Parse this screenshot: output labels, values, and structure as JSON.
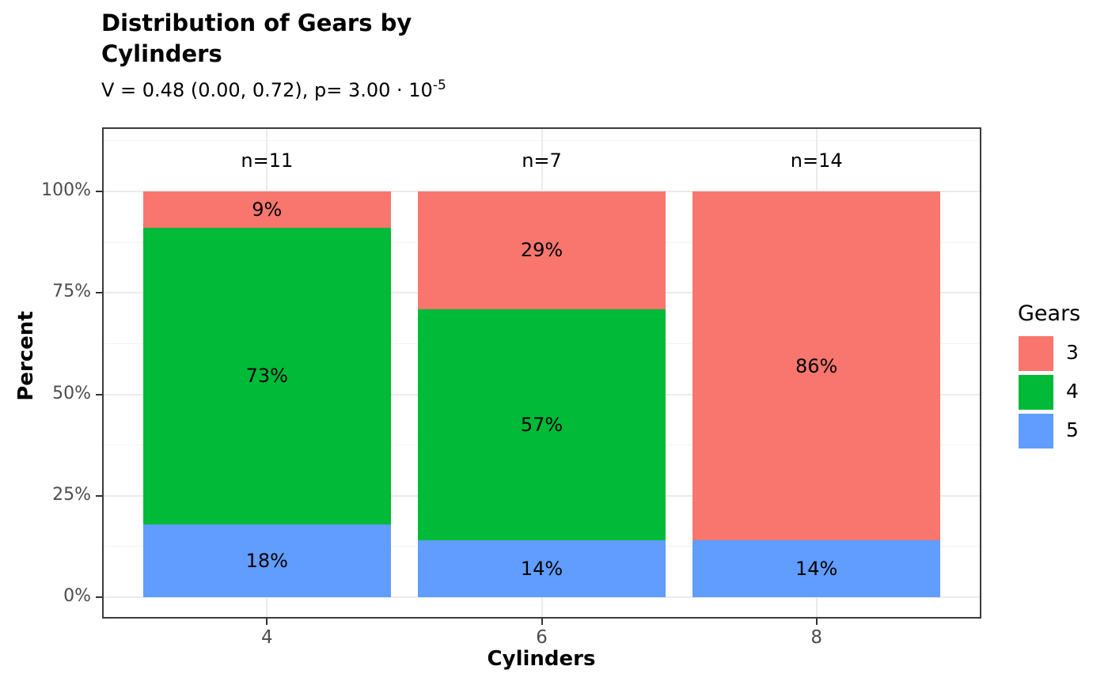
{
  "figure": {
    "title_lines": [
      "Distribution of Gears by",
      "Cylinders"
    ],
    "subtitle_main": "V = 0.48 (0.00, 0.72), p= 3.00 · 10",
    "subtitle_exponent": "-5"
  },
  "chart_data": {
    "type": "bar",
    "stacked": true,
    "orientation": "vertical",
    "title": "Distribution of Gears by Cylinders",
    "subtitle": "V = 0.48 (0.00, 0.72), p= 3.00·10^-5",
    "xlabel": "Cylinders",
    "ylabel": "Percent",
    "categories": [
      "4",
      "6",
      "8"
    ],
    "count_labels": [
      "n=11",
      "n=7",
      "n=14"
    ],
    "series": [
      {
        "name": "3",
        "color": "#F8766D",
        "values": [
          9,
          29,
          86
        ],
        "labels": [
          "9%",
          "29%",
          "86%"
        ]
      },
      {
        "name": "4",
        "color": "#00BA38",
        "values": [
          73,
          57,
          0
        ],
        "labels": [
          "73%",
          "57%",
          null
        ]
      },
      {
        "name": "5",
        "color": "#619CFF",
        "values": [
          18,
          14,
          14
        ],
        "labels": [
          "18%",
          "14%",
          "14%"
        ]
      }
    ],
    "legend": {
      "title": "Gears",
      "position": "right"
    },
    "y_axis": {
      "ticks": [
        0,
        25,
        50,
        75,
        100
      ],
      "tick_labels": [
        "0%",
        "25%",
        "50%",
        "75%",
        "100%"
      ],
      "minor_ticks": [
        12.5,
        37.5,
        62.5,
        87.5,
        112.5
      ],
      "ylim": [
        0,
        100
      ]
    },
    "grid": true
  },
  "colors": {
    "major_grid": "#EBEBEB",
    "minor_grid": "#F3F3F3",
    "panel_border": "#3B3B3B",
    "tick_mark": "#333333",
    "tick_label": "#4D4D4D",
    "bar_label": "#000000"
  }
}
